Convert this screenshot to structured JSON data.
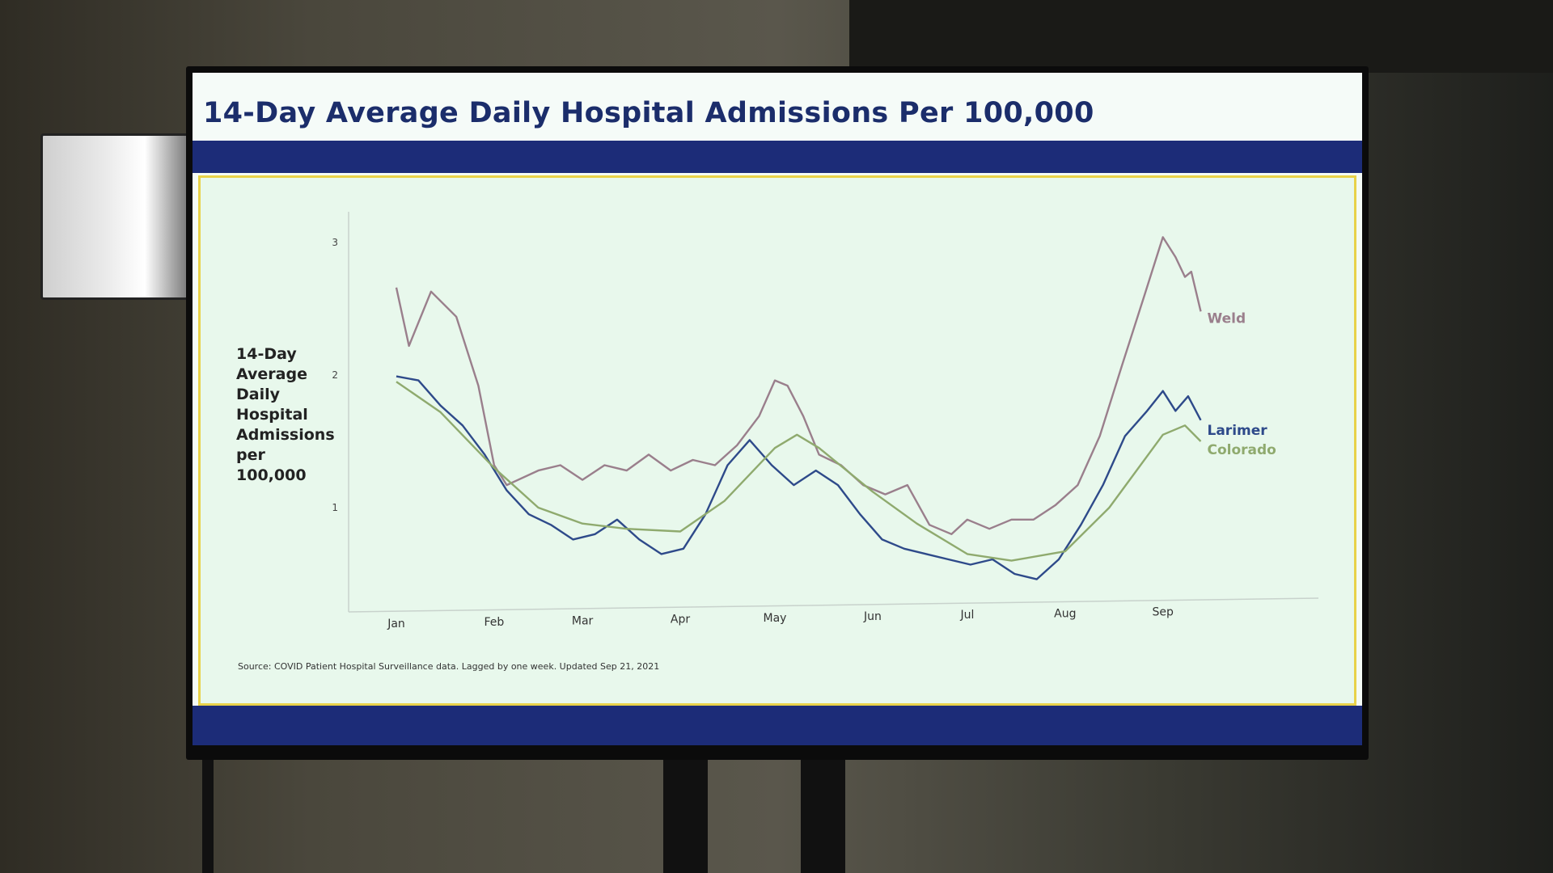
{
  "slide": {
    "title": "14-Day Average Daily Hospital Admissions Per 100,000",
    "source": "Source: COVID Patient Hospital Surveillance data. Lagged by one week. Updated Sep 21, 2021"
  },
  "chart_data": {
    "type": "line",
    "title": "14-Day Average Daily Hospital Admissions Per 100,000",
    "ylabel": [
      "14-Day",
      "Average",
      "Daily",
      "Hospital",
      "Admissions",
      "per",
      "100,000"
    ],
    "xlabel": "",
    "x_ticks": [
      {
        "label": "Jan",
        "date": "2021-01-01"
      },
      {
        "label": "Feb",
        "date": "2021-02-01"
      },
      {
        "label": "Mar",
        "date": "2021-03-01"
      },
      {
        "label": "Apr",
        "date": "2021-04-01"
      },
      {
        "label": "May",
        "date": "2021-05-01"
      },
      {
        "label": "Jun",
        "date": "2021-06-01"
      },
      {
        "label": "Jul",
        "date": "2021-07-01"
      },
      {
        "label": "Aug",
        "date": "2021-08-01"
      },
      {
        "label": "Sep",
        "date": "2021-09-01"
      }
    ],
    "y_ticks": [
      "1",
      "2",
      "3"
    ],
    "y_tick_values": [
      1,
      2,
      3
    ],
    "grid": false,
    "legend": "inline labels at line ends",
    "series": [
      {
        "name": "Weld",
        "color": "#9a7f8c",
        "x": [
          "2021-01-01",
          "2021-01-05",
          "2021-01-12",
          "2021-01-20",
          "2021-01-27",
          "2021-02-01",
          "2021-02-05",
          "2021-02-15",
          "2021-02-22",
          "2021-03-01",
          "2021-03-08",
          "2021-03-15",
          "2021-03-22",
          "2021-03-29",
          "2021-04-05",
          "2021-04-12",
          "2021-04-19",
          "2021-04-26",
          "2021-05-01",
          "2021-05-05",
          "2021-05-10",
          "2021-05-15",
          "2021-05-22",
          "2021-05-29",
          "2021-06-05",
          "2021-06-12",
          "2021-06-19",
          "2021-06-26",
          "2021-07-01",
          "2021-07-08",
          "2021-07-15",
          "2021-07-22",
          "2021-07-29",
          "2021-08-05",
          "2021-08-12",
          "2021-08-19",
          "2021-08-26",
          "2021-09-01",
          "2021-09-05",
          "2021-09-08",
          "2021-09-10",
          "2021-09-13"
        ],
        "y": [
          2.66,
          2.22,
          2.63,
          2.44,
          1.92,
          1.32,
          1.17,
          1.28,
          1.32,
          1.21,
          1.32,
          1.28,
          1.4,
          1.28,
          1.36,
          1.32,
          1.47,
          1.69,
          1.96,
          1.92,
          1.69,
          1.4,
          1.32,
          1.17,
          1.1,
          1.17,
          0.87,
          0.8,
          0.91,
          0.84,
          0.91,
          0.91,
          1.02,
          1.17,
          1.54,
          2.07,
          2.59,
          3.04,
          2.89,
          2.74,
          2.78,
          2.48
        ]
      },
      {
        "name": "Larimer",
        "color": "#2e4a8a",
        "x": [
          "2021-01-01",
          "2021-01-08",
          "2021-01-15",
          "2021-01-22",
          "2021-01-29",
          "2021-02-05",
          "2021-02-12",
          "2021-02-19",
          "2021-02-26",
          "2021-03-05",
          "2021-03-12",
          "2021-03-19",
          "2021-03-26",
          "2021-04-02",
          "2021-04-09",
          "2021-04-16",
          "2021-04-23",
          "2021-04-30",
          "2021-05-07",
          "2021-05-14",
          "2021-05-21",
          "2021-05-28",
          "2021-06-04",
          "2021-06-11",
          "2021-06-18",
          "2021-06-25",
          "2021-07-02",
          "2021-07-09",
          "2021-07-16",
          "2021-07-23",
          "2021-07-30",
          "2021-08-06",
          "2021-08-13",
          "2021-08-20",
          "2021-08-27",
          "2021-09-01",
          "2021-09-05",
          "2021-09-09",
          "2021-09-13"
        ],
        "y": [
          1.99,
          1.96,
          1.77,
          1.62,
          1.4,
          1.13,
          0.95,
          0.87,
          0.76,
          0.8,
          0.91,
          0.76,
          0.65,
          0.69,
          0.95,
          1.32,
          1.51,
          1.32,
          1.17,
          1.28,
          1.17,
          0.95,
          0.76,
          0.69,
          0.65,
          0.61,
          0.57,
          0.61,
          0.5,
          0.46,
          0.61,
          0.87,
          1.17,
          1.54,
          1.73,
          1.88,
          1.73,
          1.84,
          1.66
        ]
      },
      {
        "name": "Colorado",
        "color": "#8faa6e",
        "x": [
          "2021-01-01",
          "2021-01-15",
          "2021-02-01",
          "2021-02-15",
          "2021-03-01",
          "2021-03-15",
          "2021-04-01",
          "2021-04-15",
          "2021-05-01",
          "2021-05-08",
          "2021-05-15",
          "2021-06-01",
          "2021-06-15",
          "2021-07-01",
          "2021-07-15",
          "2021-08-01",
          "2021-08-15",
          "2021-09-01",
          "2021-09-08",
          "2021-09-13"
        ],
        "y": [
          1.95,
          1.72,
          1.3,
          1.0,
          0.88,
          0.84,
          0.82,
          1.05,
          1.45,
          1.55,
          1.45,
          1.12,
          0.88,
          0.65,
          0.6,
          0.67,
          1.0,
          1.55,
          1.62,
          1.5
        ]
      }
    ]
  }
}
